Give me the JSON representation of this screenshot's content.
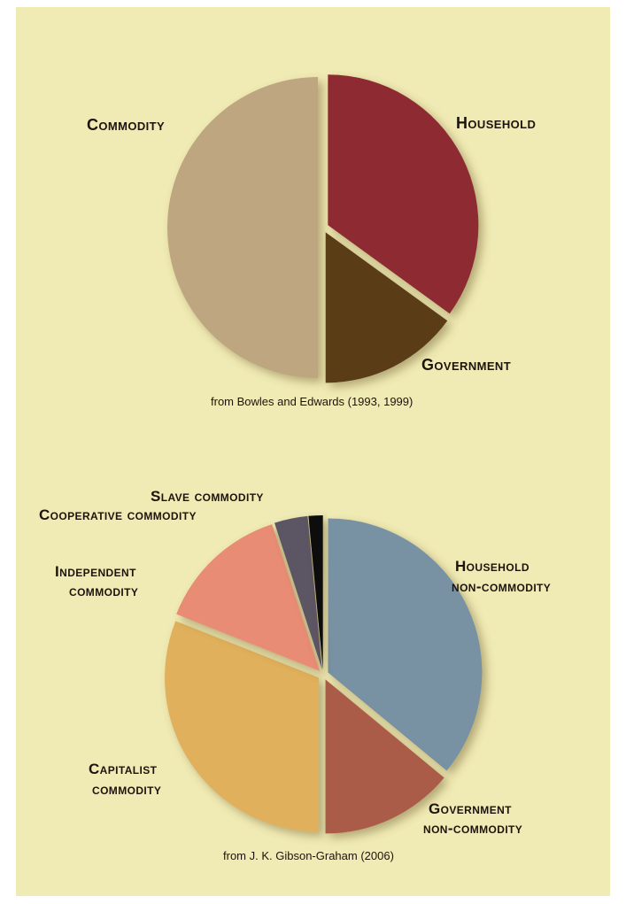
{
  "chart_data": [
    {
      "type": "pie",
      "title": "",
      "source": "from Bowles and Edwards (1993, 1999)",
      "slices": [
        {
          "label": "Household",
          "value": 35,
          "color": "#8e2c30"
        },
        {
          "label": "Government",
          "value": 15,
          "color": "#5a3c18"
        },
        {
          "label": "Commodity",
          "value": 50,
          "color": "#bea780"
        }
      ]
    },
    {
      "type": "pie",
      "title": "",
      "source": "from J. K. Gibson-Graham (2006)",
      "slices": [
        {
          "label": [
            "Household",
            "non-commodity"
          ],
          "value": 36,
          "color": "#7892a4"
        },
        {
          "label": [
            "Government",
            "non-commodity"
          ],
          "value": 14,
          "color": "#ab5c48"
        },
        {
          "label": [
            "Capitalist",
            "commodity"
          ],
          "value": 31,
          "color": "#e0b05c"
        },
        {
          "label": [
            "Independent",
            "commodity"
          ],
          "value": 14,
          "color": "#e88c74"
        },
        {
          "label": [
            "Cooperative commodity"
          ],
          "value": 3.5,
          "color": "#5c5464"
        },
        {
          "label": [
            "Slave commodity"
          ],
          "value": 1.5,
          "color": "#101010"
        }
      ]
    }
  ]
}
